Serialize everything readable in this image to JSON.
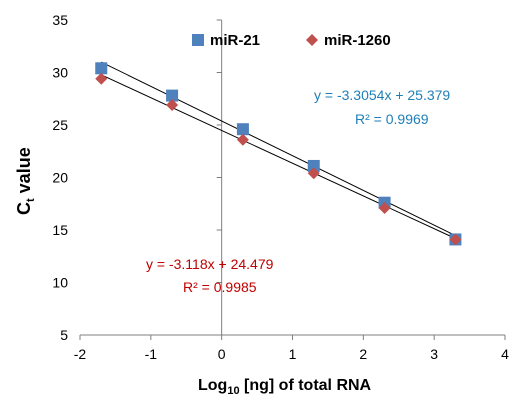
{
  "chart_data": {
    "type": "scatter",
    "xlabel": {
      "main": "Log",
      "sub": "10",
      "rest": " [ng] of total RNA"
    },
    "ylabel": {
      "main": "C",
      "sub": "t",
      "rest": " value"
    },
    "xlim": [
      -2,
      4
    ],
    "ylim": [
      5,
      35
    ],
    "x_ticks": [
      -2,
      -1,
      0,
      1,
      2,
      3,
      4
    ],
    "y_ticks": [
      5,
      10,
      15,
      20,
      25,
      30,
      35
    ],
    "grid": false,
    "legend_position": "top-center",
    "series": [
      {
        "name": "miR-21",
        "marker": "square",
        "color": "#4f81bd",
        "x": [
          -1.7,
          -0.7,
          0.3,
          1.3,
          2.3,
          3.3
        ],
        "y": [
          30.4,
          27.8,
          24.6,
          21.1,
          17.6,
          14.1
        ],
        "trendline": {
          "slope": -3.3054,
          "intercept": 25.379
        },
        "equation": "y = -3.3054x + 25.379",
        "r_squared": "R² = 0.9969",
        "label_color": "#1f7fb6"
      },
      {
        "name": "miR-1260",
        "marker": "diamond",
        "color": "#c0504d",
        "x": [
          -1.7,
          -0.7,
          0.3,
          1.3,
          2.3,
          3.3
        ],
        "y": [
          29.4,
          26.9,
          23.6,
          20.4,
          17.1,
          14.1
        ],
        "trendline": {
          "slope": -3.118,
          "intercept": 24.479
        },
        "equation": "y = -3.118x + 24.479",
        "r_squared": "R² = 0.9985",
        "label_color": "#c00000"
      }
    ]
  }
}
